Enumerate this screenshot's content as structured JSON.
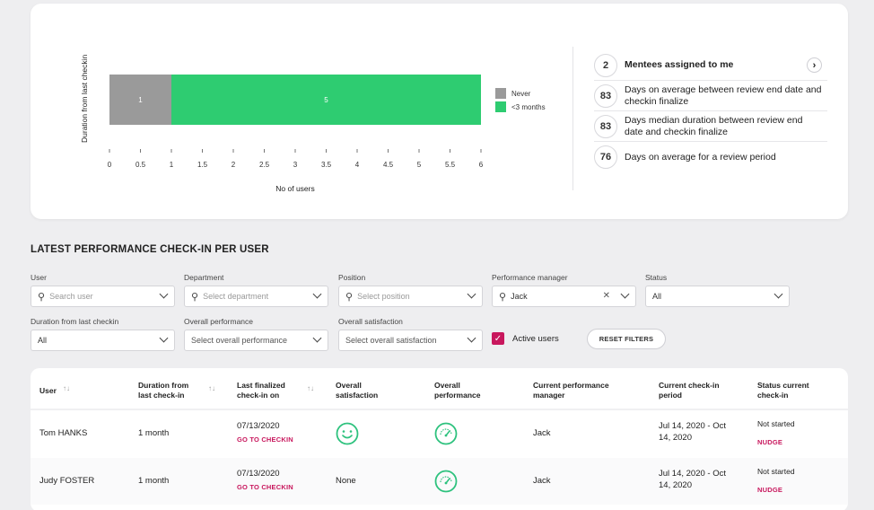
{
  "chart_data": {
    "type": "bar",
    "orientation": "horizontal",
    "stacked": true,
    "categories": [
      ""
    ],
    "series": [
      {
        "name": "Never",
        "values": [
          1
        ],
        "color": "#999999"
      },
      {
        "name": "<3 months",
        "values": [
          5
        ],
        "color": "#2ecc71"
      }
    ],
    "data_labels": [
      "1",
      "5"
    ],
    "xlabel": "No of users",
    "ylabel": "Duration from last checkin",
    "xlim": [
      0,
      6
    ],
    "xticks": [
      "0",
      "0.5",
      "1",
      "1.5",
      "2",
      "2.5",
      "3",
      "3.5",
      "4",
      "4.5",
      "5",
      "5.5",
      "6"
    ],
    "legend": "right"
  },
  "stats": [
    {
      "num": "2",
      "text": "Mentees assigned to me"
    },
    {
      "num": "83",
      "text": "Days on average between review end date and checkin finalize"
    },
    {
      "num": "83",
      "text": "Days median duration between review end date and checkin finalize"
    },
    {
      "num": "76",
      "text": "Days on average for a review period"
    }
  ],
  "stats_arrow": "›",
  "section_title": "LATEST PERFORMANCE CHECK-IN PER USER",
  "filters": {
    "user": {
      "label": "User",
      "placeholder": "Search user"
    },
    "department": {
      "label": "Department",
      "placeholder": "Select department"
    },
    "position": {
      "label": "Position",
      "placeholder": "Select position"
    },
    "manager": {
      "label": "Performance manager",
      "value": "Jack",
      "clear": "✕"
    },
    "status": {
      "label": "Status",
      "value": "All"
    },
    "duration": {
      "label": "Duration from last checkin",
      "value": "All"
    },
    "performance": {
      "label": "Overall performance",
      "placeholder": "Select overall performance"
    },
    "satisfaction": {
      "label": "Overall satisfaction",
      "placeholder": "Select overall satisfaction"
    },
    "active_users": {
      "label": "Active users",
      "checked": true
    },
    "reset": "RESET FILTERS"
  },
  "table": {
    "headers": {
      "user": "User",
      "duration": "Duration from last check-in",
      "last_finalized": "Last finalized check-in on",
      "satisfaction": "Overall satisfaction",
      "performance": "Overall performance",
      "manager": "Current performance manager",
      "period": "Current check-in period",
      "status": "Status current check-in"
    },
    "sort_glyph": "↑↓",
    "rows": [
      {
        "user": "Tom HANKS",
        "duration": "1 month",
        "last_finalized": "07/13/2020",
        "link": "GO TO CHECKIN",
        "satisfaction": "smiley-icon",
        "performance": "gauge-icon",
        "manager": "Jack",
        "period": "Jul 14, 2020 - Oct 14, 2020",
        "status": "Not started",
        "nudge": "NUDGE"
      },
      {
        "user": "Judy FOSTER",
        "duration": "1 month",
        "last_finalized": "07/13/2020",
        "link": "GO TO CHECKIN",
        "satisfaction": "None",
        "performance": "gauge-icon",
        "manager": "Jack",
        "period": "Jul 14, 2020 - Oct 14, 2020",
        "status": "Not started",
        "nudge": "NUDGE"
      }
    ]
  },
  "colors": {
    "accent": "#c8175d",
    "green": "#2ecc71",
    "grey": "#999999"
  }
}
